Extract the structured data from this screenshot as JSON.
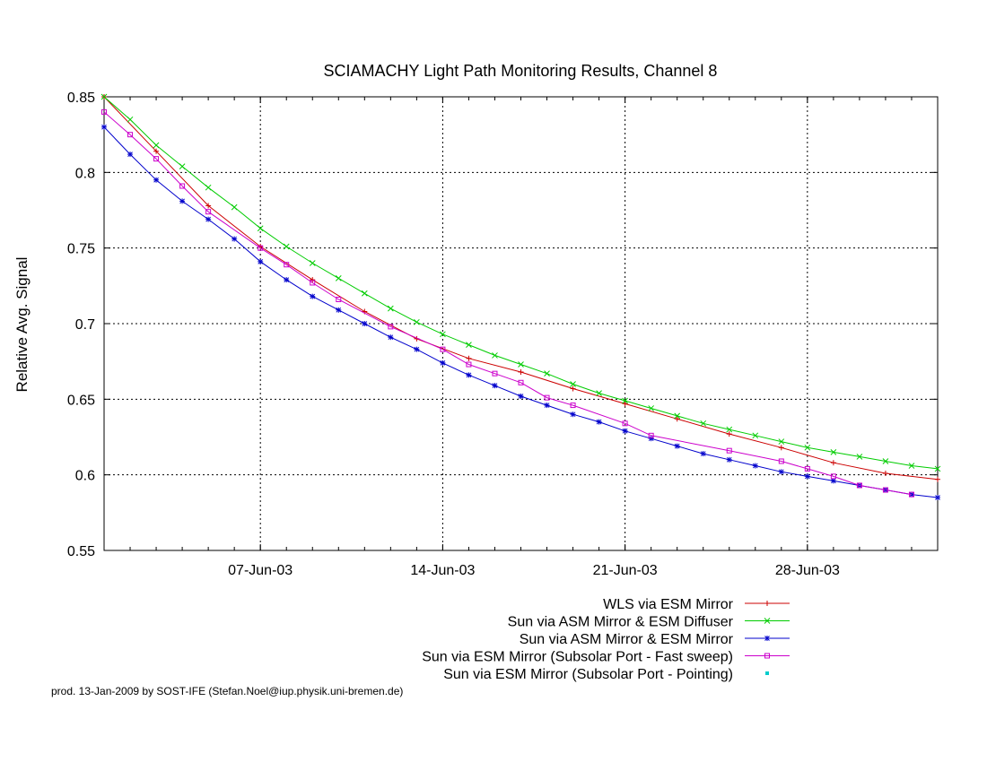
{
  "chart_data": {
    "type": "line",
    "title": "SCIAMACHY Light Path Monitoring Results, Channel 8",
    "ylabel": "Relative Avg. Signal",
    "xlabel": "",
    "x_axis_type": "date",
    "xlim": [
      "2003-06-01",
      "2003-07-03"
    ],
    "ylim": [
      0.55,
      0.85
    ],
    "yticks": [
      0.55,
      0.6,
      0.65,
      0.7,
      0.75,
      0.8,
      0.85
    ],
    "ytick_labels": [
      "0.55",
      "0.6",
      "0.65",
      "0.7",
      "0.75",
      "0.8",
      "0.85"
    ],
    "xticks": [
      "2003-06-07",
      "2003-06-14",
      "2003-06-21",
      "2003-06-28"
    ],
    "xtick_labels": [
      "07-Jun-03",
      "14-Jun-03",
      "21-Jun-03",
      "28-Jun-03"
    ],
    "grid": true,
    "legend_position": "bottom-right",
    "series": [
      {
        "name": "WLS via ESM Mirror",
        "color": "#cc0000",
        "marker": "plus",
        "x": [
          "2003-06-01",
          "2003-06-03",
          "2003-06-05",
          "2003-06-07",
          "2003-06-09",
          "2003-06-11",
          "2003-06-13",
          "2003-06-15",
          "2003-06-17",
          "2003-06-19",
          "2003-06-21",
          "2003-06-23",
          "2003-06-25",
          "2003-06-27",
          "2003-06-29",
          "2003-07-01",
          "2003-07-03"
        ],
        "y": [
          0.85,
          0.814,
          0.778,
          0.751,
          0.729,
          0.708,
          0.69,
          0.677,
          0.668,
          0.657,
          0.647,
          0.637,
          0.627,
          0.618,
          0.608,
          0.601,
          0.597
        ]
      },
      {
        "name": "Sun via ASM Mirror & ESM Diffuser",
        "color": "#00cc00",
        "marker": "x",
        "x": [
          "2003-06-01",
          "2003-06-02",
          "2003-06-03",
          "2003-06-04",
          "2003-06-05",
          "2003-06-06",
          "2003-06-07",
          "2003-06-08",
          "2003-06-09",
          "2003-06-10",
          "2003-06-11",
          "2003-06-12",
          "2003-06-13",
          "2003-06-14",
          "2003-06-15",
          "2003-06-16",
          "2003-06-17",
          "2003-06-18",
          "2003-06-19",
          "2003-06-20",
          "2003-06-21",
          "2003-06-22",
          "2003-06-23",
          "2003-06-24",
          "2003-06-25",
          "2003-06-26",
          "2003-06-27",
          "2003-06-28",
          "2003-06-29",
          "2003-06-30",
          "2003-07-01",
          "2003-07-02",
          "2003-07-03"
        ],
        "y": [
          0.85,
          0.835,
          0.818,
          0.804,
          0.79,
          0.777,
          0.763,
          0.751,
          0.74,
          0.73,
          0.72,
          0.71,
          0.701,
          0.693,
          0.686,
          0.679,
          0.673,
          0.667,
          0.66,
          0.654,
          0.649,
          0.644,
          0.639,
          0.634,
          0.63,
          0.626,
          0.622,
          0.618,
          0.615,
          0.612,
          0.609,
          0.606,
          0.604
        ]
      },
      {
        "name": "Sun via ASM Mirror & ESM Mirror",
        "color": "#0000cc",
        "marker": "star",
        "x": [
          "2003-06-01",
          "2003-06-02",
          "2003-06-03",
          "2003-06-04",
          "2003-06-05",
          "2003-06-06",
          "2003-06-07",
          "2003-06-08",
          "2003-06-09",
          "2003-06-10",
          "2003-06-11",
          "2003-06-12",
          "2003-06-13",
          "2003-06-14",
          "2003-06-15",
          "2003-06-16",
          "2003-06-17",
          "2003-06-18",
          "2003-06-19",
          "2003-06-20",
          "2003-06-21",
          "2003-06-22",
          "2003-06-23",
          "2003-06-24",
          "2003-06-25",
          "2003-06-26",
          "2003-06-27",
          "2003-06-28",
          "2003-06-29",
          "2003-06-30",
          "2003-07-01",
          "2003-07-02",
          "2003-07-03"
        ],
        "y": [
          0.83,
          0.812,
          0.795,
          0.781,
          0.769,
          0.756,
          0.741,
          0.729,
          0.718,
          0.709,
          0.7,
          0.691,
          0.683,
          0.674,
          0.666,
          0.659,
          0.652,
          0.646,
          0.64,
          0.635,
          0.629,
          0.624,
          0.619,
          0.614,
          0.61,
          0.606,
          0.602,
          0.599,
          0.596,
          0.593,
          0.59,
          0.587,
          0.585
        ]
      },
      {
        "name": "Sun via ESM Mirror (Subsolar Port - Fast sweep)",
        "color": "#cc00cc",
        "marker": "square",
        "x": [
          "2003-06-01",
          "2003-06-02",
          "2003-06-03",
          "2003-06-04",
          "2003-06-05",
          "2003-06-07",
          "2003-06-08",
          "2003-06-09",
          "2003-06-10",
          "2003-06-12",
          "2003-06-14",
          "2003-06-15",
          "2003-06-16",
          "2003-06-17",
          "2003-06-18",
          "2003-06-19",
          "2003-06-21",
          "2003-06-22",
          "2003-06-25",
          "2003-06-27",
          "2003-06-28",
          "2003-06-29",
          "2003-06-30",
          "2003-07-01",
          "2003-07-02"
        ],
        "y": [
          0.84,
          0.825,
          0.809,
          0.791,
          0.774,
          0.75,
          0.739,
          0.727,
          0.716,
          0.698,
          0.683,
          0.673,
          0.667,
          0.661,
          0.651,
          0.646,
          0.634,
          0.626,
          0.616,
          0.609,
          0.604,
          0.599,
          0.593,
          0.59,
          0.587
        ]
      },
      {
        "name": "Sun via ESM Mirror (Subsolar Port - Pointing)",
        "color": "#00cccc",
        "marker": "dot",
        "x": [],
        "y": []
      }
    ]
  },
  "footer": "prod. 13-Jan-2009 by SOST-IFE (Stefan.Noel@iup.physik.uni-bremen.de)"
}
